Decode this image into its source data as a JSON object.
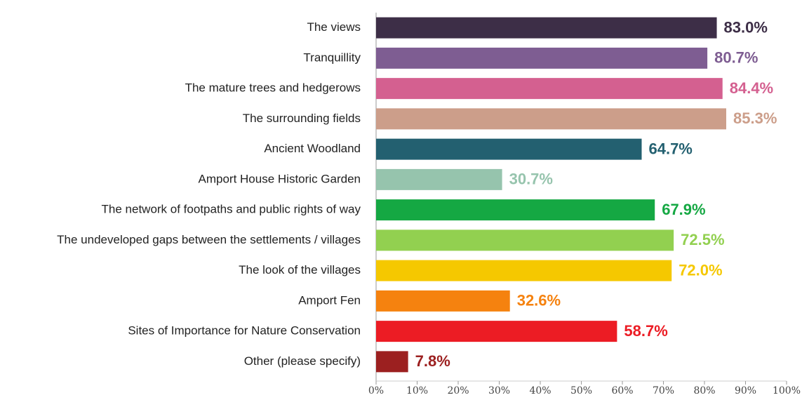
{
  "chart_data": {
    "type": "bar",
    "orientation": "horizontal",
    "categories": [
      "The views",
      "Tranquillity",
      "The mature trees and hedgerows",
      "The surrounding fields",
      "Ancient Woodland",
      "Amport House Historic Garden",
      "The network of footpaths and public rights of way",
      "The undeveloped gaps between the settlements / villages",
      "The look of the villages",
      "Amport Fen",
      "Sites of Importance for Nature Conservation",
      "Other (please specify)"
    ],
    "values": [
      83.0,
      80.7,
      84.4,
      85.3,
      64.7,
      30.7,
      67.9,
      72.5,
      72.0,
      32.6,
      58.7,
      7.8
    ],
    "value_labels": [
      "83.0%",
      "80.7%",
      "84.4%",
      "85.3%",
      "64.7%",
      "30.7%",
      "67.9%",
      "72.5%",
      "72.0%",
      "32.6%",
      "58.7%",
      "7.8%"
    ],
    "colors": [
      "#3d2e47",
      "#7e5d92",
      "#d46090",
      "#cc9e8a",
      "#236070",
      "#96c4ad",
      "#15a843",
      "#92d050",
      "#f5c800",
      "#f5820f",
      "#ec1c24",
      "#9c2020"
    ],
    "xlim": [
      0,
      100
    ],
    "xticks": [
      {
        "value": 0,
        "label": "0%"
      },
      {
        "value": 10,
        "label": "10%"
      },
      {
        "value": 20,
        "label": "20%"
      },
      {
        "value": 30,
        "label": "30%"
      },
      {
        "value": 40,
        "label": "40%"
      },
      {
        "value": 50,
        "label": "50%"
      },
      {
        "value": 60,
        "label": "60%"
      },
      {
        "value": 70,
        "label": "70%"
      },
      {
        "value": 80,
        "label": "80%"
      },
      {
        "value": 90,
        "label": "90%"
      },
      {
        "value": 100,
        "label": "100%"
      }
    ]
  }
}
